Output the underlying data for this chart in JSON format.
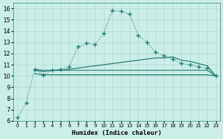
{
  "xlabel": "Humidex (Indice chaleur)",
  "bg_color": "#cceee8",
  "line_color": "#1a7a6e",
  "grid_color": "#aad8d0",
  "xlim": [
    -0.5,
    23.5
  ],
  "ylim": [
    6,
    16.5
  ],
  "xticks": [
    0,
    1,
    2,
    3,
    4,
    5,
    6,
    7,
    8,
    9,
    10,
    11,
    12,
    13,
    14,
    15,
    16,
    17,
    18,
    19,
    20,
    21,
    22,
    23
  ],
  "yticks": [
    6,
    7,
    8,
    9,
    10,
    11,
    12,
    13,
    14,
    15,
    16
  ],
  "line1_x": [
    0,
    1,
    2,
    3,
    4,
    5,
    6,
    7,
    8,
    9,
    10,
    11,
    12,
    13,
    14,
    15,
    16,
    17,
    18,
    19,
    20,
    21,
    22,
    23
  ],
  "line1_y": [
    6.3,
    7.6,
    10.6,
    10.1,
    10.5,
    10.6,
    10.8,
    12.6,
    12.9,
    12.8,
    13.8,
    15.8,
    15.75,
    15.5,
    13.6,
    13.0,
    12.1,
    11.8,
    11.5,
    11.1,
    11.0,
    10.8,
    10.7,
    10.0
  ],
  "line2_x": [
    2,
    3,
    4,
    5,
    6,
    7,
    8,
    9,
    10,
    11,
    12,
    13,
    14,
    15,
    16,
    17,
    18,
    19,
    20,
    21,
    22,
    23
  ],
  "line2_y": [
    10.5,
    10.4,
    10.5,
    10.5,
    10.6,
    10.7,
    10.8,
    10.9,
    11.0,
    11.1,
    11.2,
    11.3,
    11.4,
    11.5,
    11.6,
    11.6,
    11.7,
    11.4,
    11.3,
    11.1,
    10.9,
    10.0
  ],
  "line3_x": [
    2,
    3,
    4,
    5,
    6,
    7,
    8,
    9,
    10,
    11,
    12,
    13,
    14,
    15,
    16,
    17,
    18,
    19,
    20,
    21,
    22,
    23
  ],
  "line3_y": [
    10.2,
    10.1,
    10.1,
    10.1,
    10.1,
    10.1,
    10.1,
    10.1,
    10.1,
    10.1,
    10.1,
    10.1,
    10.1,
    10.1,
    10.1,
    10.1,
    10.1,
    10.1,
    10.1,
    10.1,
    10.1,
    10.0
  ],
  "line4_x": [
    2,
    3,
    4,
    5,
    6,
    7,
    8,
    9,
    10,
    11,
    12,
    13,
    14,
    15,
    16,
    17,
    18,
    19,
    20,
    21,
    22,
    23
  ],
  "line4_y": [
    10.6,
    10.5,
    10.5,
    10.5,
    10.5,
    10.5,
    10.5,
    10.5,
    10.5,
    10.5,
    10.5,
    10.5,
    10.5,
    10.5,
    10.5,
    10.5,
    10.5,
    10.5,
    10.5,
    10.5,
    10.5,
    10.0
  ]
}
